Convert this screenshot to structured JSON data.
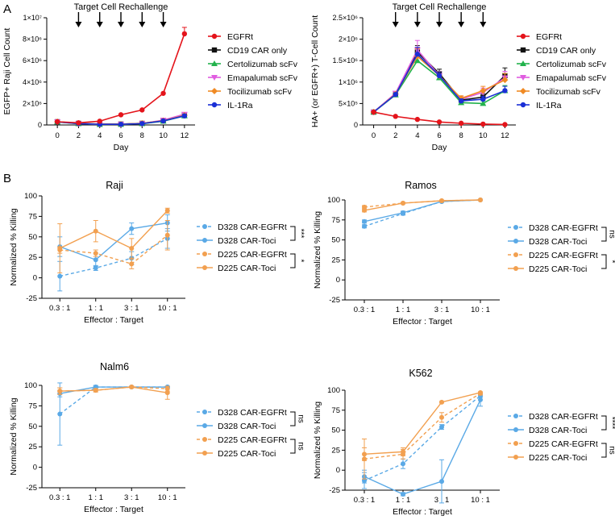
{
  "panel_labels": {
    "a": "A",
    "b": "B"
  },
  "rechallenge_label": "Target Cell Rechallenge",
  "colors": {
    "EGFRt": "#e4141b",
    "CD19 CAR only": "#111111",
    "Certolizumab scFv": "#22b24c",
    "Emapalumab scFv": "#e05ce0",
    "Tocilizumab scFv": "#f08a24",
    "IL-1Ra": "#1a2fd6",
    "d328": "#5aa9e6",
    "d225": "#f2a050"
  },
  "chart_data": [
    {
      "id": "raji-count",
      "type": "line",
      "title": "",
      "xlabel": "Day",
      "ylabel": "EGFP+ Raji Cell Count",
      "x": [
        0,
        2,
        4,
        6,
        8,
        10,
        12
      ],
      "xlim": [
        -1,
        13
      ],
      "ylim": [
        0,
        10000000
      ],
      "yticks": [
        0,
        2000000,
        4000000,
        6000000,
        8000000,
        10000000
      ],
      "ytick_labels": [
        "0",
        "2×10⁶",
        "4×10⁶",
        "6×10⁶",
        "8×10⁶",
        "1×10⁷"
      ],
      "rechallenge_days": [
        2,
        4,
        6,
        8,
        10
      ],
      "series": [
        {
          "name": "EGFRt",
          "marker": "circle",
          "values": [
            300000,
            200000,
            350000,
            950000,
            1400000,
            2950000,
            8500000
          ],
          "errors": [
            0,
            0,
            0,
            0,
            0,
            0,
            600000
          ]
        },
        {
          "name": "CD19 CAR only",
          "marker": "square",
          "values": [
            300000,
            150000,
            80000,
            80000,
            150000,
            400000,
            900000
          ],
          "errors": [
            0,
            0,
            0,
            0,
            0,
            0,
            0
          ]
        },
        {
          "name": "Certolizumab scFv",
          "marker": "triangle",
          "values": [
            280000,
            120000,
            50000,
            60000,
            120000,
            350000,
            850000
          ],
          "errors": [
            0,
            0,
            0,
            0,
            0,
            0,
            0
          ]
        },
        {
          "name": "Emapalumab scFv",
          "marker": "triangle-down",
          "values": [
            300000,
            130000,
            60000,
            70000,
            140000,
            450000,
            1000000
          ],
          "errors": [
            0,
            0,
            0,
            0,
            0,
            0,
            0
          ]
        },
        {
          "name": "Tocilizumab scFv",
          "marker": "diamond",
          "values": [
            300000,
            140000,
            70000,
            70000,
            160000,
            400000,
            900000
          ],
          "errors": [
            0,
            0,
            0,
            0,
            0,
            0,
            0
          ]
        },
        {
          "name": "IL-1Ra",
          "marker": "circle",
          "values": [
            290000,
            130000,
            60000,
            60000,
            130000,
            380000,
            850000
          ],
          "errors": [
            0,
            0,
            0,
            0,
            0,
            0,
            0
          ]
        }
      ]
    },
    {
      "id": "tcell-count",
      "type": "line",
      "title": "",
      "xlabel": "Day",
      "ylabel": "HA+ (or EGFR+) T-Cell Count",
      "x": [
        0,
        2,
        4,
        6,
        8,
        10,
        12
      ],
      "xlim": [
        -1,
        13
      ],
      "ylim": [
        0,
        2500000
      ],
      "yticks": [
        0,
        500000,
        1000000,
        1500000,
        2000000,
        2500000
      ],
      "ytick_labels": [
        "0",
        "5×10⁵",
        "1×10⁶",
        "1.5×10⁶",
        "2×10⁶",
        "2.5×10⁶"
      ],
      "rechallenge_days": [
        2,
        4,
        6,
        8,
        10
      ],
      "series": [
        {
          "name": "EGFRt",
          "marker": "circle",
          "values": [
            300000,
            200000,
            130000,
            70000,
            40000,
            20000,
            10000
          ],
          "errors": [
            0,
            0,
            0,
            0,
            0,
            0,
            0
          ]
        },
        {
          "name": "CD19 CAR only",
          "marker": "square",
          "values": [
            300000,
            730000,
            1700000,
            1200000,
            580000,
            650000,
            1150000
          ],
          "errors": [
            0,
            40000,
            150000,
            100000,
            50000,
            80000,
            180000
          ]
        },
        {
          "name": "Certolizumab scFv",
          "marker": "triangle",
          "values": [
            300000,
            700000,
            1500000,
            1100000,
            520000,
            500000,
            800000
          ],
          "errors": [
            0,
            40000,
            130000,
            80000,
            40000,
            60000,
            120000
          ]
        },
        {
          "name": "Emapalumab scFv",
          "marker": "triangle-down",
          "values": [
            300000,
            740000,
            1750000,
            1150000,
            600000,
            760000,
            1100000
          ],
          "errors": [
            0,
            40000,
            220000,
            100000,
            60000,
            100000,
            150000
          ]
        },
        {
          "name": "Tocilizumab scFv",
          "marker": "diamond",
          "values": [
            300000,
            720000,
            1600000,
            1150000,
            620000,
            800000,
            1050000
          ],
          "errors": [
            0,
            40000,
            180000,
            100000,
            60000,
            100000,
            150000
          ]
        },
        {
          "name": "IL-1Ra",
          "marker": "circle",
          "values": [
            300000,
            710000,
            1650000,
            1150000,
            560000,
            600000,
            800000
          ],
          "errors": [
            0,
            40000,
            160000,
            90000,
            50000,
            70000,
            100000
          ]
        }
      ]
    },
    {
      "id": "raji-killing",
      "type": "line",
      "title": "Raji",
      "xlabel": "Effector : Target",
      "ylabel": "Normalized % Killing",
      "categories": [
        "0.3 : 1",
        "1 : 1",
        "3 : 1",
        "10 : 1"
      ],
      "ylim": [
        -25,
        100
      ],
      "yticks": [
        -25,
        0,
        25,
        50,
        75,
        100
      ],
      "series": [
        {
          "name": "D328 CAR-EGFRt",
          "color": "d328",
          "dashed": true,
          "values": [
            2,
            12,
            24,
            48
          ],
          "errors": [
            18,
            3,
            8,
            12
          ]
        },
        {
          "name": "D328 CAR-Toci",
          "color": "d328",
          "dashed": false,
          "values": [
            38,
            22,
            60,
            67
          ],
          "errors": [
            12,
            8,
            7,
            10
          ]
        },
        {
          "name": "D225 CAR-EGFRt",
          "color": "d225",
          "dashed": true,
          "values": [
            34,
            30,
            17,
            52
          ],
          "errors": [
            4,
            4,
            6,
            18
          ]
        },
        {
          "name": "D225 CAR-Toci",
          "color": "d225",
          "dashed": false,
          "values": [
            36,
            57,
            36,
            82
          ],
          "errors": [
            30,
            13,
            12,
            3
          ]
        }
      ],
      "significance": [
        "***",
        "*"
      ]
    },
    {
      "id": "ramos-killing",
      "type": "line",
      "title": "Ramos",
      "xlabel": "Effector : Target",
      "ylabel": "Normalized % Killing",
      "categories": [
        "0.3 : 1",
        "1 : 1",
        "3 : 1",
        "10 : 1"
      ],
      "ylim": [
        -25,
        100
      ],
      "yticks": [
        -25,
        0,
        25,
        50,
        75,
        100
      ],
      "series": [
        {
          "name": "D328 CAR-EGFRt",
          "color": "d328",
          "dashed": true,
          "values": [
            67,
            83,
            98,
            100
          ],
          "errors": [
            2,
            2,
            1,
            0
          ]
        },
        {
          "name": "D328 CAR-Toci",
          "color": "d328",
          "dashed": false,
          "values": [
            73,
            84,
            98,
            100
          ],
          "errors": [
            2,
            2,
            1,
            0
          ]
        },
        {
          "name": "D225 CAR-EGFRt",
          "color": "d225",
          "dashed": true,
          "values": [
            91,
            96,
            99,
            100
          ],
          "errors": [
            2,
            1,
            1,
            0
          ]
        },
        {
          "name": "D225 CAR-Toci",
          "color": "d225",
          "dashed": false,
          "values": [
            87,
            96,
            99,
            100
          ],
          "errors": [
            2,
            1,
            1,
            0
          ]
        }
      ],
      "significance": [
        "ns",
        "*"
      ]
    },
    {
      "id": "nalm6-killing",
      "type": "line",
      "title": "Nalm6",
      "xlabel": "Effector : Target",
      "ylabel": "Normalized % Killing",
      "categories": [
        "0.3 : 1",
        "1 : 1",
        "3 : 1",
        "10 : 1"
      ],
      "ylim": [
        -25,
        100
      ],
      "yticks": [
        -25,
        0,
        25,
        50,
        75,
        100
      ],
      "series": [
        {
          "name": "D328 CAR-EGFRt",
          "color": "d328",
          "dashed": true,
          "values": [
            65,
            98,
            98,
            98
          ],
          "errors": [
            38,
            2,
            1,
            1
          ]
        },
        {
          "name": "D328 CAR-Toci",
          "color": "d328",
          "dashed": false,
          "values": [
            90,
            98,
            98,
            98
          ],
          "errors": [
            4,
            1,
            1,
            1
          ]
        },
        {
          "name": "D225 CAR-EGFRt",
          "color": "d225",
          "dashed": true,
          "values": [
            93,
            94,
            98,
            96
          ],
          "errors": [
            4,
            2,
            1,
            3
          ]
        },
        {
          "name": "D225 CAR-Toci",
          "color": "d225",
          "dashed": false,
          "values": [
            93,
            94,
            98,
            91
          ],
          "errors": [
            4,
            2,
            1,
            8
          ]
        }
      ],
      "significance": [
        "ns",
        "ns"
      ]
    },
    {
      "id": "k562-killing",
      "type": "line",
      "title": "K562",
      "xlabel": "Effector : Target",
      "ylabel": "Normalized % Killing",
      "categories": [
        "0.3 : 1",
        "1 : 1",
        "3 : 1",
        "10 : 1"
      ],
      "ylim": [
        -25,
        100
      ],
      "yticks": [
        -25,
        0,
        25,
        50,
        75,
        100
      ],
      "series": [
        {
          "name": "D328 CAR-EGFRt",
          "color": "d328",
          "dashed": true,
          "values": [
            -13,
            8,
            54,
            93
          ],
          "errors": [
            10,
            6,
            3,
            2
          ]
        },
        {
          "name": "D328 CAR-Toci",
          "color": "d328",
          "dashed": false,
          "values": [
            -8,
            -30,
            -14,
            88
          ],
          "errors": [
            8,
            2,
            27,
            8
          ]
        },
        {
          "name": "D225 CAR-EGFRt",
          "color": "d225",
          "dashed": true,
          "values": [
            14,
            20,
            66,
            96
          ],
          "errors": [
            25,
            6,
            6,
            2
          ]
        },
        {
          "name": "D225 CAR-Toci",
          "color": "d225",
          "dashed": false,
          "values": [
            20,
            23,
            85,
            97
          ],
          "errors": [
            8,
            5,
            1,
            1
          ]
        }
      ],
      "significance": [
        "****",
        "ns"
      ]
    }
  ]
}
